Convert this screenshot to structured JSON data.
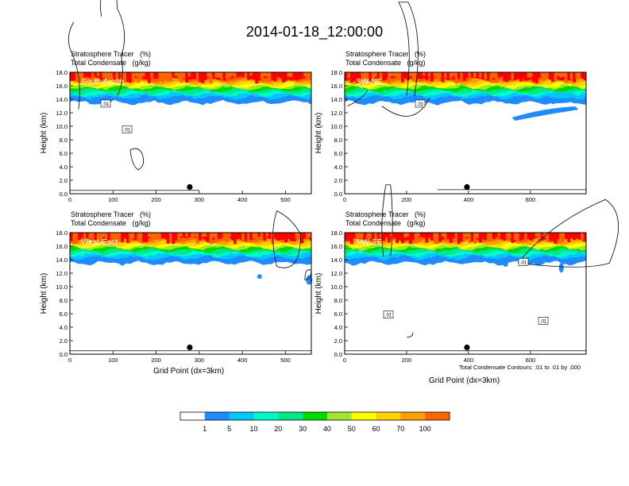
{
  "title": "2014-01-18_12:00:00",
  "panel_titles": {
    "line1": "Stratosphere Tracer   (%)",
    "line2": "Total Condensate   (g/kg)"
  },
  "x_title": "Grid Point (dx=3km)",
  "y_title": "Height (km)",
  "contour_note": "Total Condensate Contours: .01 to .01 by .000",
  "colors": [
    "#ffffff",
    "#1e8cff",
    "#00c8ff",
    "#00fac8",
    "#00e68c",
    "#00dc00",
    "#a0e632",
    "#ffff00",
    "#ffd200",
    "#ffa000",
    "#ff6400",
    "#fa0000"
  ],
  "colorbar_labels": [
    "1",
    "5",
    "10",
    "20",
    "30",
    "40",
    "50",
    "60",
    "70",
    "100"
  ],
  "chart_data": [
    {
      "type": "heatmap",
      "label": "South-North",
      "xlim": [
        0,
        560
      ],
      "ylim": [
        0,
        18
      ],
      "xticks": [
        "0",
        "100",
        "200",
        "300",
        "400",
        "500"
      ],
      "yticks": [
        "0.0",
        "2.0",
        "4.0",
        "6.0",
        "8.0",
        "10.0",
        "12.0",
        "14.0",
        "16.0",
        "18.0"
      ],
      "contour_labels": [
        ".01",
        ".01"
      ]
    },
    {
      "type": "heatmap",
      "label": "SW-NE",
      "xlim": [
        0,
        780
      ],
      "ylim": [
        0,
        18
      ],
      "xticks": [
        "0",
        "200",
        "400",
        "600"
      ],
      "yticks": [
        "0.0",
        "2.0",
        "4.0",
        "6.0",
        "8.0",
        "10.0",
        "12.0",
        "14.0",
        "16.0",
        "18.0"
      ],
      "contour_labels": [
        ".01"
      ]
    },
    {
      "type": "heatmap",
      "label": "West-East",
      "xlim": [
        0,
        560
      ],
      "ylim": [
        0,
        18
      ],
      "xticks": [
        "0",
        "100",
        "200",
        "300",
        "400",
        "500"
      ],
      "yticks": [
        "0.0",
        "2.0",
        "4.0",
        "6.0",
        "8.0",
        "10.0",
        "12.0",
        "14.0",
        "16.0",
        "18.0"
      ],
      "contour_labels": []
    },
    {
      "type": "heatmap",
      "label": "NW-SE",
      "xlim": [
        0,
        780
      ],
      "ylim": [
        0,
        18
      ],
      "xticks": [
        "0",
        "200",
        "400",
        "600"
      ],
      "yticks": [
        "0.0",
        "2.0",
        "4.0",
        "6.0",
        "8.0",
        "10.0",
        "12.0",
        "14.0",
        "16.0",
        "18.0"
      ],
      "contour_labels": [
        ".01",
        ".01",
        ".01"
      ]
    }
  ]
}
